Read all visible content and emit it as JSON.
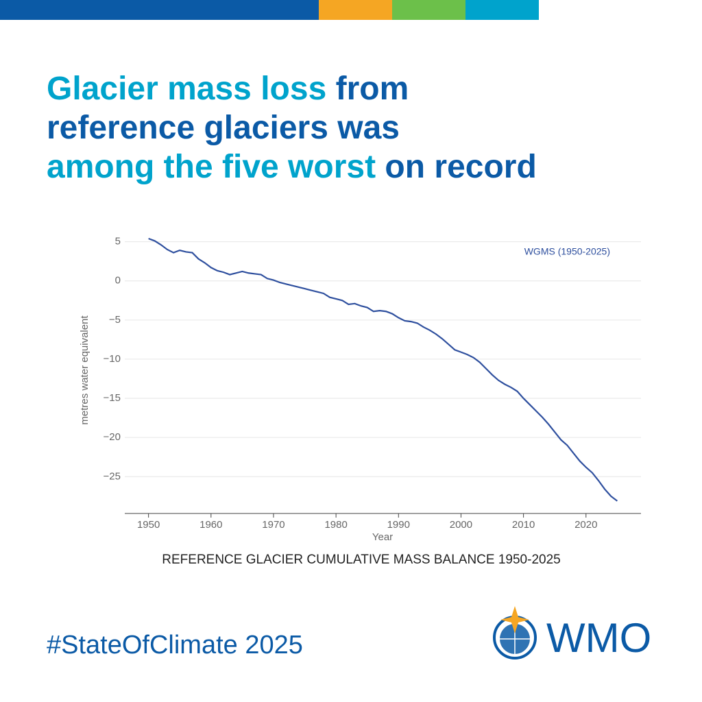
{
  "headline": [
    [
      {
        "text": "Glacier mass loss",
        "color": "#00a3cc"
      },
      {
        "text": " from",
        "color": "#0b5aa6"
      }
    ],
    [
      {
        "text": "reference glaciers was",
        "color": "#0b5aa6"
      }
    ],
    [
      {
        "text": "among the five worst",
        "color": "#00a3cc"
      },
      {
        "text": " on record",
        "color": "#0b5aa6"
      }
    ]
  ],
  "hashtag": "#StateOfClimate 2025",
  "logo_text": "WMO",
  "chart_data": {
    "type": "line",
    "title": "REFERENCE GLACIER CUMULATIVE MASS BALANCE 1950-2025",
    "x_label": "Year",
    "y_label": "metres water equivalent",
    "x": [
      1950,
      1951,
      1952,
      1953,
      1954,
      1955,
      1956,
      1957,
      1958,
      1959,
      1960,
      1961,
      1962,
      1963,
      1964,
      1965,
      1966,
      1967,
      1968,
      1969,
      1970,
      1971,
      1972,
      1973,
      1974,
      1975,
      1976,
      1977,
      1978,
      1979,
      1980,
      1981,
      1982,
      1983,
      1984,
      1985,
      1986,
      1987,
      1988,
      1989,
      1990,
      1991,
      1992,
      1993,
      1994,
      1995,
      1996,
      1997,
      1998,
      1999,
      2000,
      2001,
      2002,
      2003,
      2004,
      2005,
      2006,
      2007,
      2008,
      2009,
      2010,
      2011,
      2012,
      2013,
      2014,
      2015,
      2016,
      2017,
      2018,
      2019,
      2020,
      2021,
      2022,
      2023,
      2024,
      2025
    ],
    "series": [
      {
        "name": "WGMS (1950-2025)",
        "color": "#2e4f9e",
        "values": [
          5.4,
          5.1,
          4.6,
          4.0,
          3.6,
          3.9,
          3.7,
          3.6,
          2.8,
          2.3,
          1.7,
          1.3,
          1.1,
          0.8,
          1.0,
          1.2,
          1.0,
          0.9,
          0.8,
          0.3,
          0.1,
          -0.2,
          -0.4,
          -0.6,
          -0.8,
          -1.0,
          -1.2,
          -1.4,
          -1.6,
          -2.1,
          -2.3,
          -2.5,
          -3.0,
          -2.9,
          -3.2,
          -3.4,
          -3.9,
          -3.8,
          -3.9,
          -4.2,
          -4.7,
          -5.1,
          -5.2,
          -5.4,
          -5.9,
          -6.3,
          -6.8,
          -7.4,
          -8.1,
          -8.8,
          -9.1,
          -9.4,
          -9.8,
          -10.4,
          -11.2,
          -12.0,
          -12.7,
          -13.2,
          -13.6,
          -14.1,
          -15.0,
          -15.8,
          -16.6,
          -17.4,
          -18.3,
          -19.3,
          -20.3,
          -21.0,
          -22.0,
          -23.0,
          -23.8,
          -24.5,
          -25.5,
          -26.6,
          -27.5,
          -28.1
        ]
      }
    ],
    "xlim": [
      1946.2,
      2028.8
    ],
    "ylim": [
      -29.7,
      6.1
    ],
    "xticks": [
      1950,
      1960,
      1970,
      1980,
      1990,
      2000,
      2010,
      2020
    ],
    "yticks": [
      5,
      0,
      {
        "value": -5,
        "label": "−5"
      },
      {
        "value": -10,
        "label": "−10"
      },
      {
        "value": -15,
        "label": "−15"
      },
      {
        "value": -20,
        "label": "−20"
      },
      {
        "value": -25,
        "label": "−25"
      }
    ],
    "grid": true,
    "legend": "top-right"
  }
}
